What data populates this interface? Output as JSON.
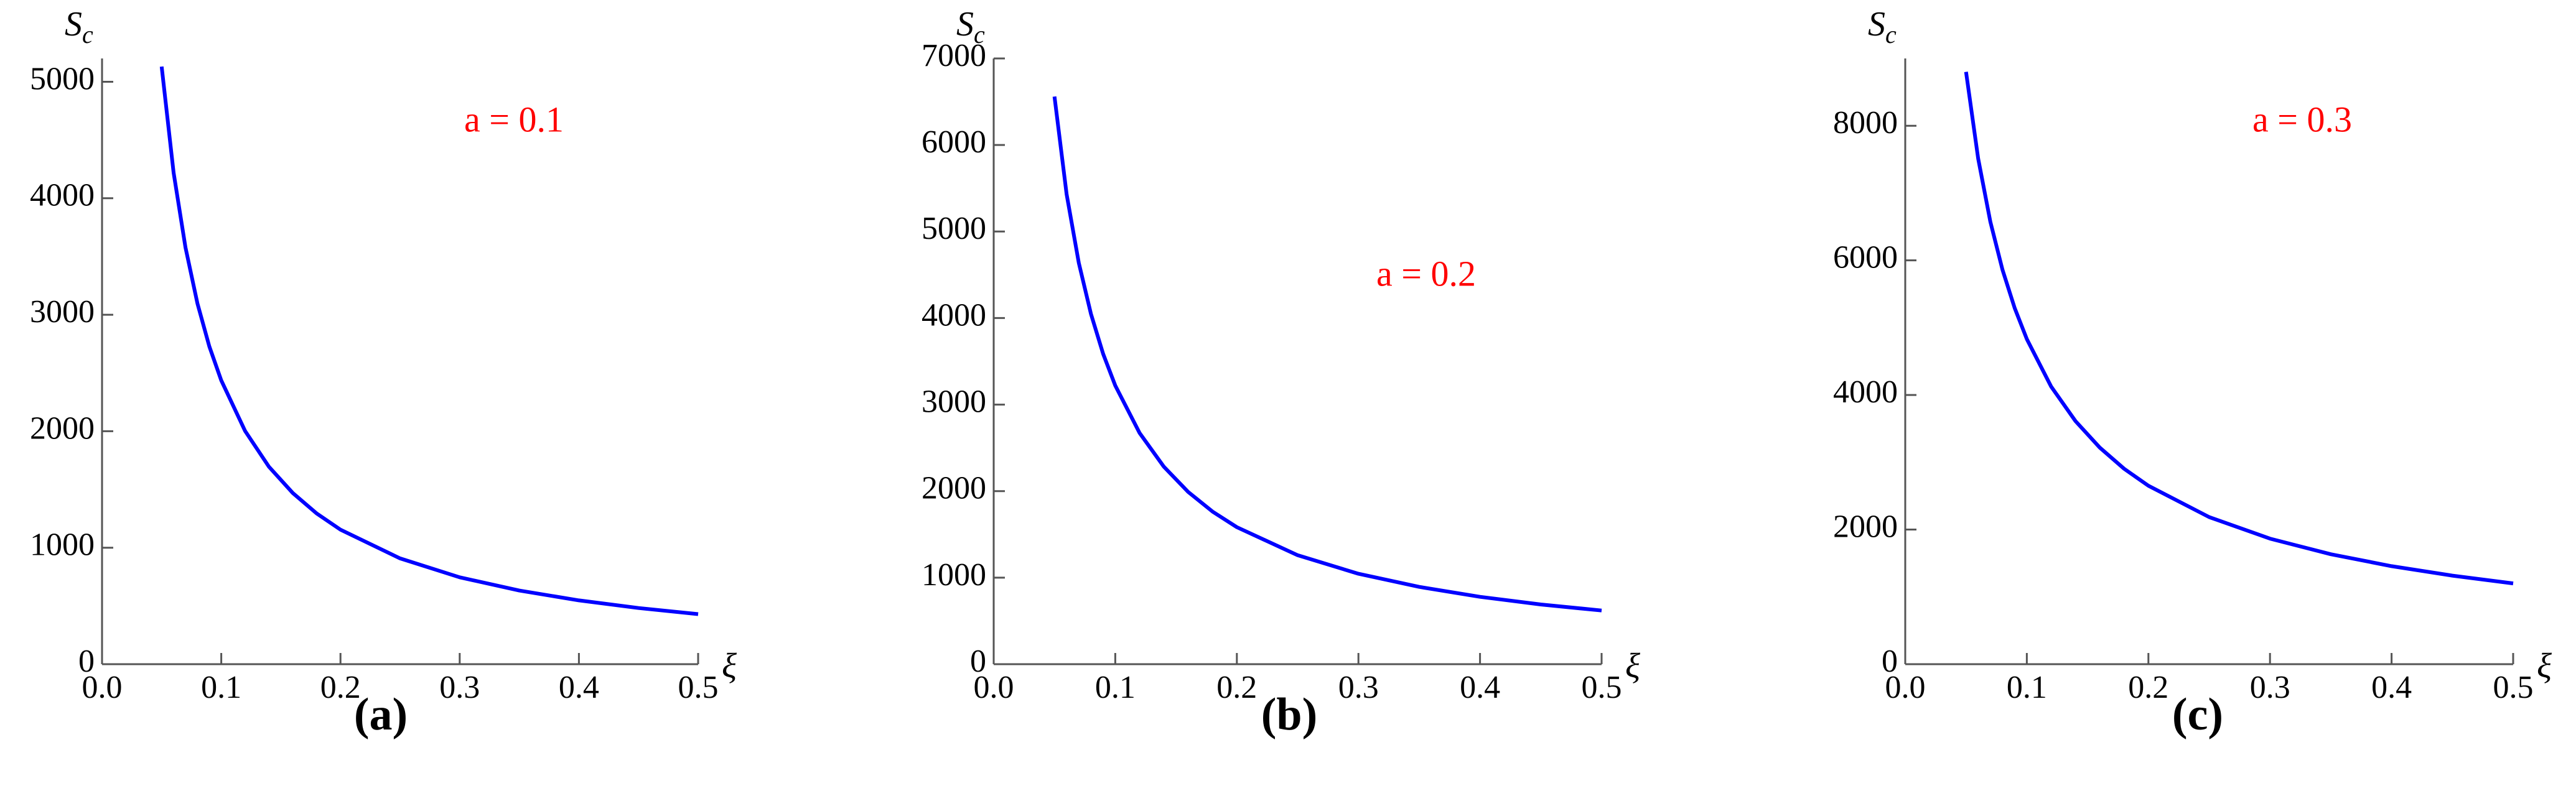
{
  "chart_data": [
    {
      "type": "line",
      "label": "(a)",
      "annotation": "a = 0.1",
      "x_label": "ξ",
      "y_label": {
        "base": "S",
        "sub": "c"
      },
      "color": "#0000ff",
      "x": [
        0.05,
        0.06,
        0.07,
        0.08,
        0.09,
        0.1,
        0.12,
        0.14,
        0.16,
        0.18,
        0.2,
        0.25,
        0.3,
        0.35,
        0.4,
        0.45,
        0.5
      ],
      "values": [
        5130,
        4220,
        3577,
        3097,
        2728,
        2436,
        2002,
        1695,
        1469,
        1294,
        1155,
        908,
        746,
        632,
        548,
        482,
        430
      ],
      "xlim": [
        0,
        0.5
      ],
      "ylim": [
        0,
        5200
      ],
      "xticks": [
        {
          "value": 0,
          "label": "0.0"
        },
        0.1,
        0.2,
        0.3,
        0.4,
        0.5
      ],
      "yticks": [
        0,
        1000,
        2000,
        3000,
        4000,
        5000
      ]
    },
    {
      "type": "line",
      "label": "(b)",
      "annotation": "a = 0.2",
      "x_label": "ξ",
      "y_label": {
        "base": "S",
        "sub": "c"
      },
      "color": "#0000ff",
      "x": [
        0.05,
        0.06,
        0.07,
        0.08,
        0.09,
        0.1,
        0.12,
        0.14,
        0.16,
        0.18,
        0.2,
        0.25,
        0.3,
        0.35,
        0.4,
        0.45,
        0.5
      ],
      "values": [
        6560,
        5431,
        4637,
        4048,
        3586,
        3220,
        2671,
        2281,
        1990,
        1764,
        1583,
        1259,
        1045,
        893,
        778,
        690,
        620
      ],
      "xlim": [
        0,
        0.5
      ],
      "ylim": [
        0,
        7000
      ],
      "xticks": [
        {
          "value": 0,
          "label": "0.0"
        },
        0.1,
        0.2,
        0.3,
        0.4,
        0.5
      ],
      "yticks": [
        0,
        1000,
        2000,
        3000,
        4000,
        5000,
        6000,
        7000
      ]
    },
    {
      "type": "line",
      "label": "(c)",
      "annotation": "a = 0.3",
      "x_label": "ξ",
      "y_label": {
        "base": "S",
        "sub": "c"
      },
      "color": "#0000ff",
      "x": [
        0.05,
        0.06,
        0.07,
        0.08,
        0.09,
        0.1,
        0.12,
        0.14,
        0.16,
        0.18,
        0.2,
        0.25,
        0.3,
        0.35,
        0.4,
        0.45,
        0.5
      ],
      "values": [
        8800,
        7512,
        6573,
        5860,
        5291,
        4831,
        4125,
        3612,
        3218,
        2904,
        2651,
        2185,
        1866,
        1634,
        1456,
        1316,
        1200
      ],
      "xlim": [
        0,
        0.5
      ],
      "ylim": [
        0,
        9000
      ],
      "xticks": [
        {
          "value": 0,
          "label": "0.0"
        },
        0.1,
        0.2,
        0.3,
        0.4,
        0.5
      ],
      "yticks": [
        0,
        2000,
        4000,
        6000,
        8000
      ]
    }
  ]
}
